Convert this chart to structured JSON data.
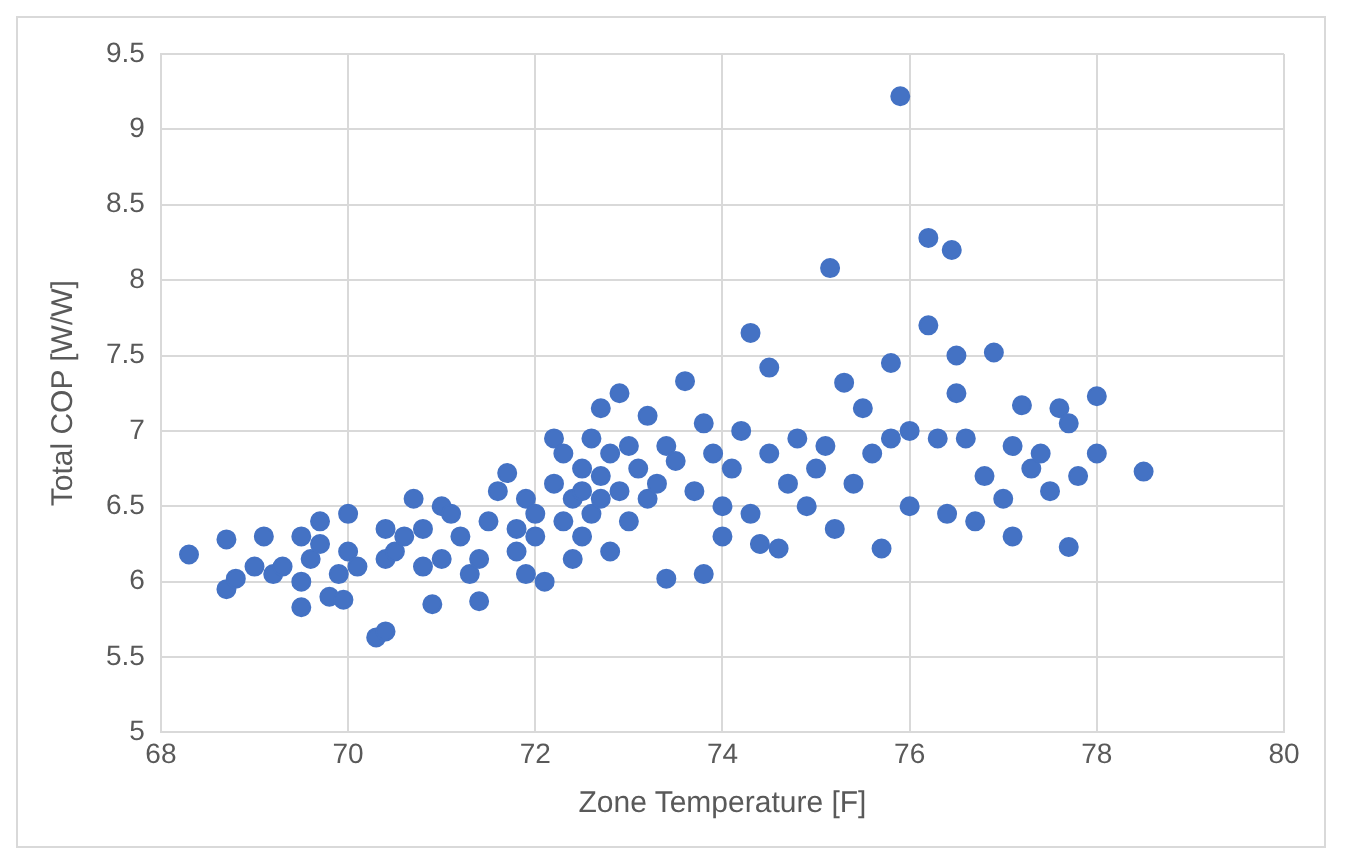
{
  "chart_data": {
    "type": "scatter",
    "xlabel": "Zone Temperature [F]",
    "ylabel": "Total COP [W/W]",
    "xlim": [
      68,
      80
    ],
    "xticks": [
      68,
      70,
      72,
      74,
      76,
      78,
      80
    ],
    "ylim": [
      5,
      9.5
    ],
    "yticks": [
      5,
      5.5,
      6,
      6.5,
      7,
      7.5,
      8,
      8.5,
      9,
      9.5
    ],
    "grid": true,
    "legend": false,
    "marker": "circle",
    "series": [
      {
        "color": "#4472c4",
        "x": [
          68.3,
          68.7,
          68.7,
          68.8,
          69.0,
          69.1,
          69.2,
          69.3,
          69.5,
          69.5,
          69.5,
          69.6,
          69.7,
          69.7,
          69.8,
          69.9,
          69.95,
          70.0,
          70.0,
          70.1,
          70.3,
          70.4,
          70.4,
          70.4,
          70.5,
          70.6,
          70.7,
          70.8,
          70.8,
          70.9,
          71.0,
          71.0,
          71.1,
          71.2,
          71.3,
          71.4,
          71.4,
          71.5,
          71.6,
          71.7,
          71.8,
          71.8,
          71.9,
          71.9,
          72.0,
          72.0,
          72.1,
          72.2,
          72.2,
          72.3,
          72.3,
          72.4,
          72.4,
          72.5,
          72.5,
          72.5,
          72.6,
          72.6,
          72.7,
          72.7,
          72.7,
          72.8,
          72.8,
          72.9,
          72.9,
          73.0,
          73.0,
          73.1,
          73.2,
          73.2,
          73.3,
          73.4,
          73.4,
          73.5,
          73.6,
          73.7,
          73.8,
          73.8,
          73.9,
          74.0,
          74.0,
          74.1,
          74.2,
          74.3,
          74.3,
          74.4,
          74.5,
          74.5,
          74.6,
          74.7,
          74.8,
          74.9,
          75.0,
          75.1,
          75.15,
          75.2,
          75.3,
          75.4,
          75.5,
          75.6,
          75.7,
          75.8,
          75.8,
          75.9,
          76.0,
          76.0,
          76.2,
          76.2,
          76.3,
          76.4,
          76.45,
          76.5,
          76.5,
          76.6,
          76.7,
          76.8,
          76.9,
          77.0,
          77.1,
          77.1,
          77.2,
          77.3,
          77.4,
          77.5,
          77.6,
          77.7,
          77.7,
          77.8,
          78.0,
          78.0,
          78.5
        ],
        "values": [
          6.18,
          5.95,
          6.28,
          6.02,
          6.1,
          6.3,
          6.05,
          6.1,
          5.83,
          6.0,
          6.3,
          6.15,
          6.4,
          6.25,
          5.9,
          6.05,
          5.88,
          6.45,
          6.2,
          6.1,
          5.63,
          5.67,
          6.35,
          6.15,
          6.2,
          6.3,
          6.55,
          6.1,
          6.35,
          5.85,
          6.5,
          6.15,
          6.45,
          6.3,
          6.05,
          6.15,
          5.87,
          6.4,
          6.6,
          6.72,
          6.2,
          6.35,
          6.55,
          6.05,
          6.45,
          6.3,
          6.0,
          6.65,
          6.95,
          6.85,
          6.4,
          6.55,
          6.15,
          6.6,
          6.75,
          6.3,
          6.95,
          6.45,
          7.15,
          6.7,
          6.55,
          6.2,
          6.85,
          7.25,
          6.6,
          6.9,
          6.4,
          6.75,
          7.1,
          6.55,
          6.65,
          6.02,
          6.9,
          6.8,
          7.33,
          6.6,
          6.05,
          7.05,
          6.85,
          6.5,
          6.3,
          6.75,
          7.0,
          7.65,
          6.45,
          6.25,
          7.42,
          6.85,
          6.22,
          6.65,
          6.95,
          6.5,
          6.75,
          6.9,
          8.08,
          6.35,
          7.32,
          6.65,
          7.15,
          6.85,
          6.22,
          7.45,
          6.95,
          9.22,
          6.5,
          7.0,
          8.28,
          7.7,
          6.95,
          6.45,
          8.2,
          7.5,
          7.25,
          6.95,
          6.4,
          6.7,
          7.52,
          6.55,
          6.9,
          6.3,
          7.17,
          6.75,
          6.85,
          6.6,
          7.15,
          6.23,
          7.05,
          6.7,
          7.23,
          6.85,
          6.73
        ]
      }
    ]
  }
}
